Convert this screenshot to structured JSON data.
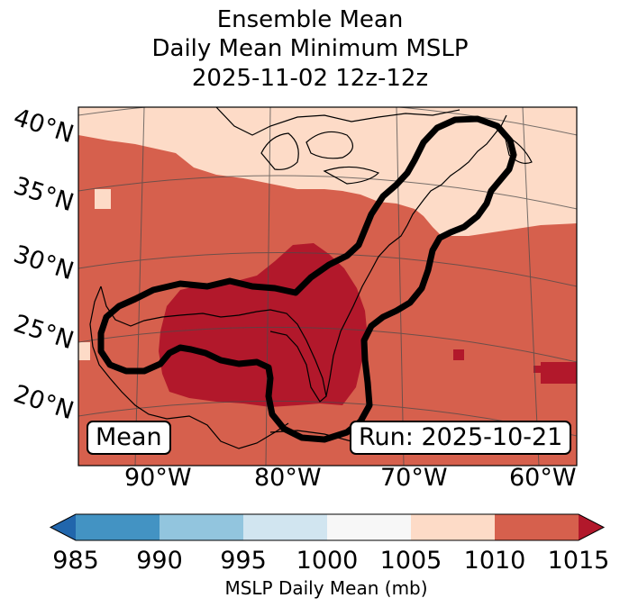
{
  "title": {
    "line1": "Ensemble Mean",
    "line2": "Daily Mean Minimum MSLP",
    "line3": "2025-11-02 12z-12z"
  },
  "map": {
    "lat_labels": [
      "40°N",
      "35°N",
      "30°N",
      "25°N",
      "20°N"
    ],
    "lon_labels": [
      "90°W",
      "80°W",
      "70°W",
      "60°W"
    ],
    "mean_label": "Mean",
    "run_label": "Run: 2025-10-21",
    "fill_levels_mb": {
      "background": "1010-1015",
      "northeast_band": "1005-1010",
      "gulf_core": "1015+"
    },
    "outline_color": "#000000"
  },
  "colorbar": {
    "ticks": [
      "985",
      "990",
      "995",
      "1000",
      "1005",
      "1010",
      "1015"
    ],
    "label": "MSLP Daily Mean (mb)",
    "colors": [
      "#2166ac",
      "#4393c3",
      "#92c5de",
      "#d1e5f0",
      "#f7f7f7",
      "#fddbc7",
      "#d6604d",
      "#b2182b"
    ]
  }
}
